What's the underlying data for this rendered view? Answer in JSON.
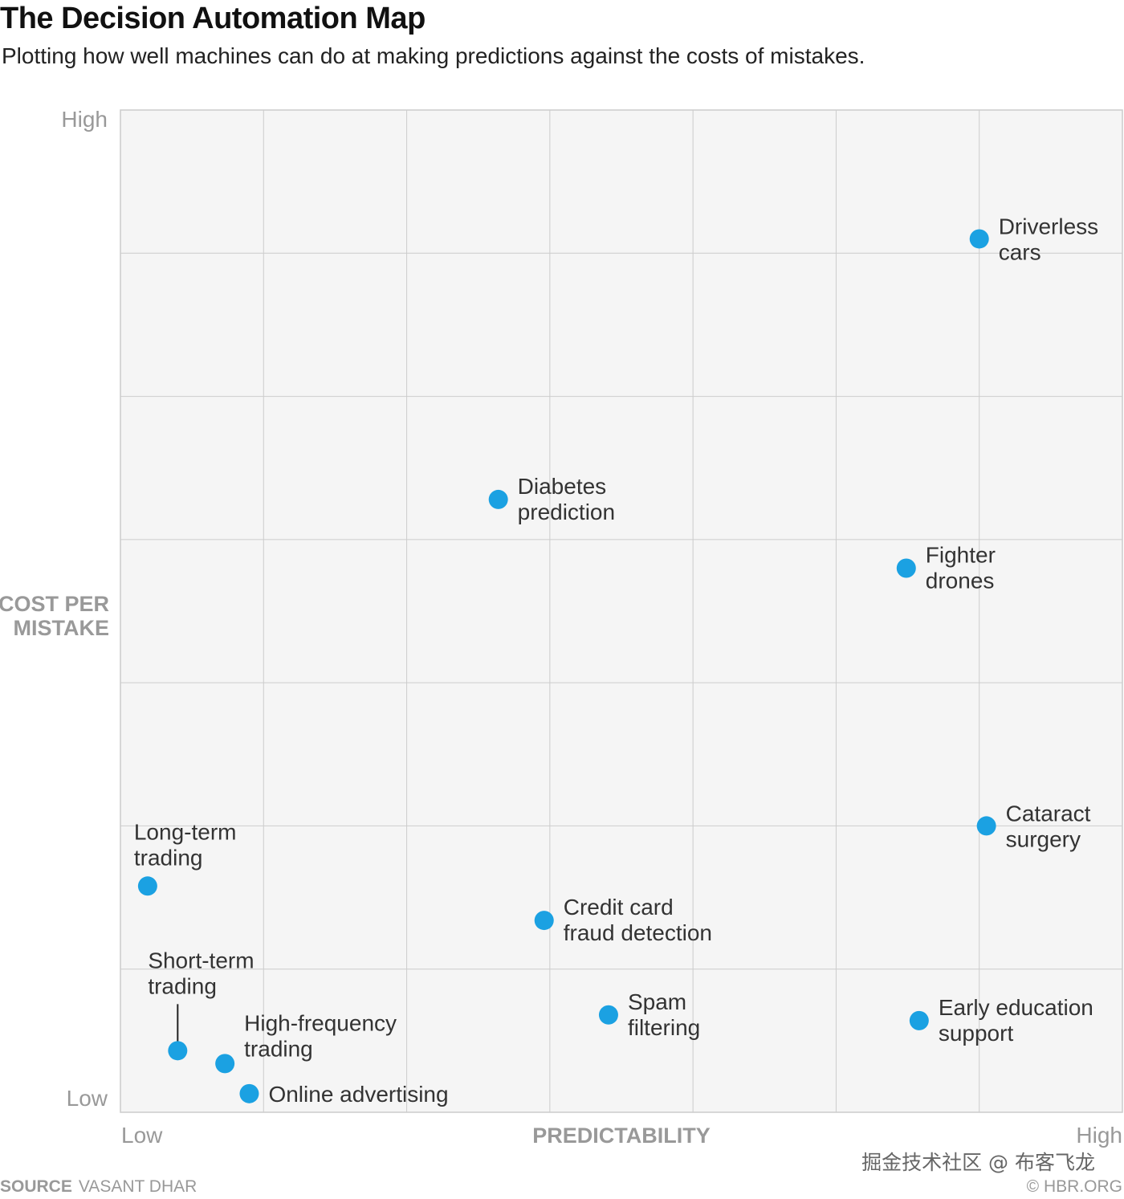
{
  "chart_data": {
    "type": "scatter",
    "title": "The Decision Automation Map",
    "subtitle": "Plotting how well machines can do at making predictions against the costs of mistakes.",
    "xlabel": "PREDICTABILITY",
    "ylabel": [
      "COST PER",
      "MISTAKE"
    ],
    "x_tick_labels": {
      "low": "Low",
      "high": "High"
    },
    "y_tick_labels": {
      "low": "Low",
      "high": "High"
    },
    "xlim": [
      0,
      7
    ],
    "ylim": [
      0,
      7
    ],
    "grid": true,
    "point_color": "#1ba1e2",
    "plot_background": "#f5f5f5",
    "points": [
      {
        "label": [
          "Driverless",
          "cars"
        ],
        "x": 6.0,
        "y": 6.1
      },
      {
        "label": [
          "Diabetes",
          "prediction"
        ],
        "x": 2.64,
        "y": 4.28
      },
      {
        "label": [
          "Fighter",
          "drones"
        ],
        "x": 5.49,
        "y": 3.8
      },
      {
        "label": [
          "Cataract",
          "surgery"
        ],
        "x": 6.05,
        "y": 2.0
      },
      {
        "label": [
          "Long-term",
          "trading"
        ],
        "x": 0.19,
        "y": 1.58
      },
      {
        "label": [
          "Credit card",
          "fraud detection"
        ],
        "x": 2.96,
        "y": 1.34
      },
      {
        "label": [
          "Spam",
          "filtering"
        ],
        "x": 3.41,
        "y": 0.68
      },
      {
        "label": [
          "Early education",
          "support"
        ],
        "x": 5.58,
        "y": 0.64
      },
      {
        "label": [
          "Short-term",
          "trading"
        ],
        "x": 0.4,
        "y": 0.43
      },
      {
        "label": [
          "High-frequency",
          "trading"
        ],
        "x": 0.73,
        "y": 0.34
      },
      {
        "label": [
          "Online advertising"
        ],
        "x": 0.9,
        "y": 0.13
      }
    ]
  },
  "footer": {
    "source_label": "SOURCE",
    "source": "VASANT DHAR",
    "credit": "© HBR.ORG",
    "watermark": "掘金技术社区 @ 布客飞龙"
  }
}
